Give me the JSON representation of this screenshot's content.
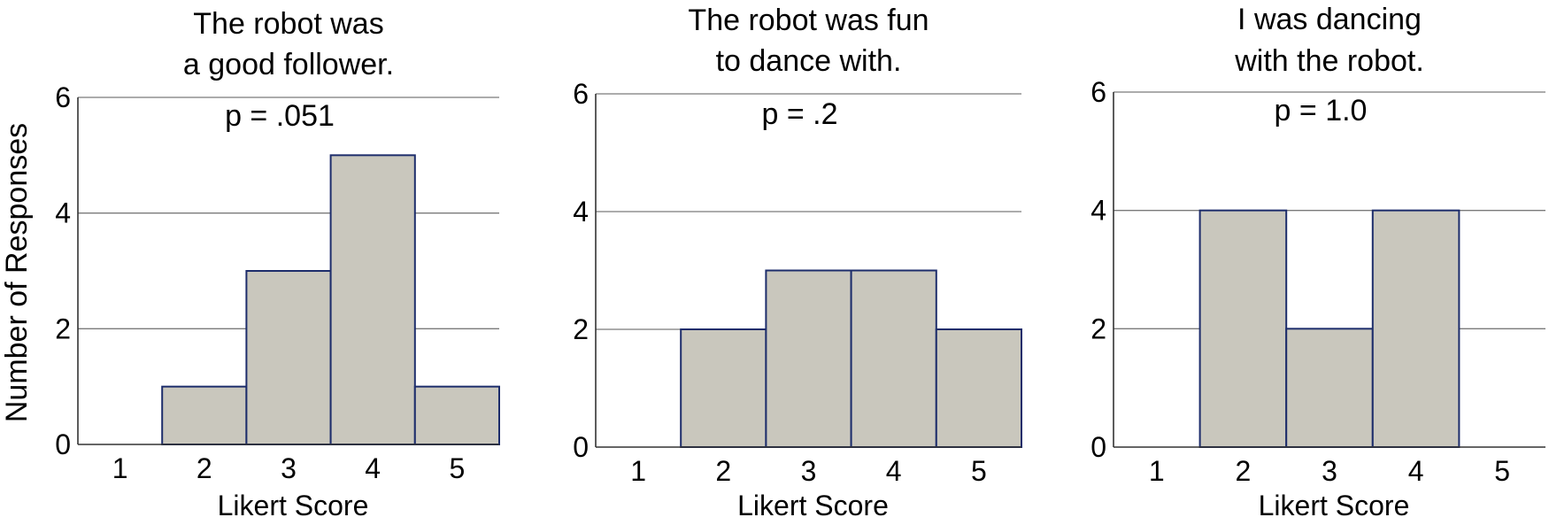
{
  "ylabel": "Number of Responses",
  "chart_data": [
    {
      "type": "bar",
      "title": [
        "The robot was",
        "a good follower."
      ],
      "annotation": "p = .051",
      "xlabel": "Likert Score",
      "ylabel": "Number of Responses",
      "categories": [
        "1",
        "2",
        "3",
        "4",
        "5"
      ],
      "values": [
        0,
        1,
        3,
        5,
        1
      ],
      "ylim": [
        0,
        6
      ],
      "yticks": [
        "0",
        "2",
        "4",
        "6"
      ],
      "grid": true
    },
    {
      "type": "bar",
      "title": [
        "The robot was fun",
        "to dance with."
      ],
      "annotation": "p = .2",
      "xlabel": "Likert Score",
      "categories": [
        "1",
        "2",
        "3",
        "4",
        "5"
      ],
      "values": [
        0,
        2,
        3,
        3,
        2
      ],
      "ylim": [
        0,
        6
      ],
      "yticks": [
        "0",
        "2",
        "4",
        "6"
      ],
      "grid": true
    },
    {
      "type": "bar",
      "title": [
        "I was dancing",
        "with the robot."
      ],
      "annotation": "p = 1.0",
      "xlabel": "Likert Score",
      "categories": [
        "1",
        "2",
        "3",
        "4",
        "5"
      ],
      "values": [
        0,
        4,
        2,
        4,
        0
      ],
      "ylim": [
        0,
        6
      ],
      "yticks": [
        "0",
        "2",
        "4",
        "6"
      ],
      "grid": true
    }
  ]
}
